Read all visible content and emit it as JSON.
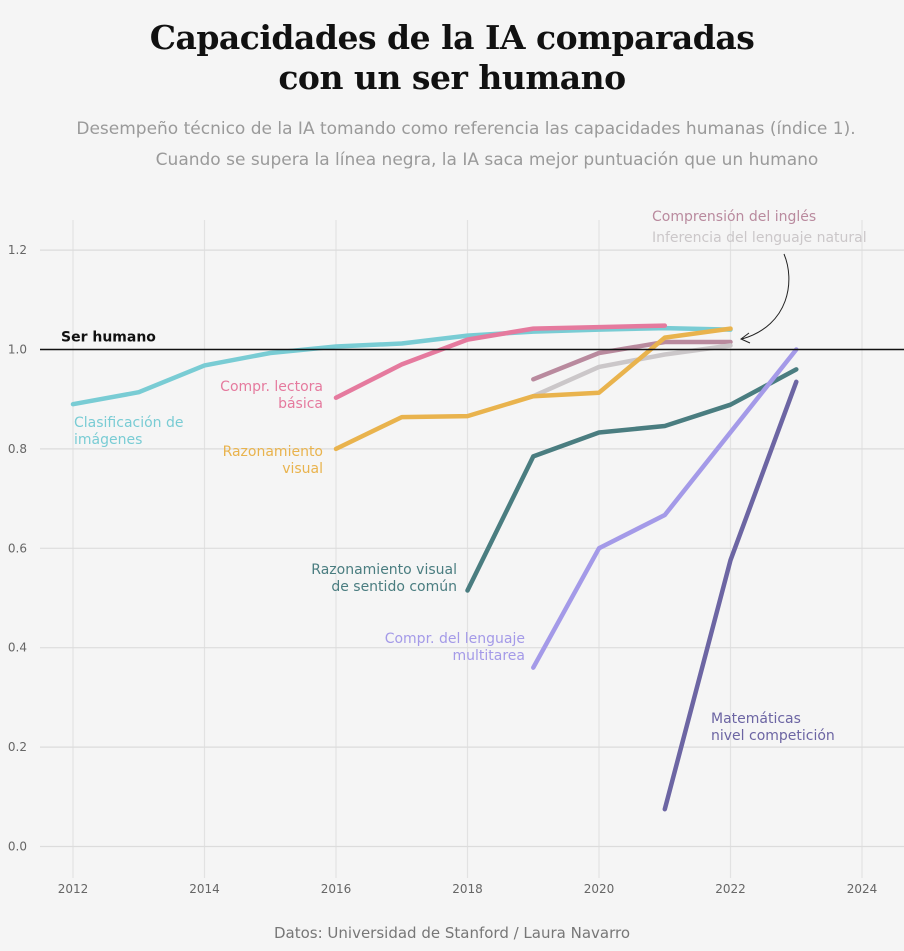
{
  "title_lines": [
    "Capacidades de la IA comparadas",
    "con un ser humano"
  ],
  "subtitle_lines": [
    "Desempeño técnico de la IA tomando como referencia las capacidades humanas (índice 1).",
    "Cuando se supera la línea negra, la IA saca mejor puntuación que un humano"
  ],
  "source": "Datos: Universidad de Stanford / Laura Navarro",
  "chart_data": {
    "type": "line",
    "title": "Capacidades de la IA comparadas con un ser humano",
    "xlim": [
      2011.5,
      2024.5
    ],
    "ylim": [
      -0.05,
      1.27
    ],
    "x_ticks": [
      2012,
      2014,
      2016,
      2018,
      2020,
      2022,
      2024
    ],
    "y_ticks": [
      0.0,
      0.2,
      0.4,
      0.6,
      0.8,
      1.0,
      1.2
    ],
    "y_tick_labels": [
      "0.0",
      "0.2",
      "0.4",
      "0.6",
      "0.8",
      "1.0",
      "1.2"
    ],
    "grid": true,
    "reference_line": {
      "y": 1.0,
      "label": "Ser humano",
      "color": "#111111"
    },
    "series": [
      {
        "name": "Clasificación de imágenes",
        "label_lines": [
          "Clasificación de",
          "imágenes"
        ],
        "color": "#79ccd4",
        "x": [
          2012,
          2013,
          2014,
          2015,
          2016,
          2017,
          2018,
          2019,
          2020,
          2021,
          2022
        ],
        "y": [
          0.89,
          0.914,
          0.968,
          0.993,
          1.006,
          1.012,
          1.028,
          1.036,
          1.04,
          1.043,
          1.04
        ]
      },
      {
        "name": "Compr. lectora básica",
        "label_lines": [
          "Compr. lectora",
          "básica"
        ],
        "color": "#e57a9e",
        "x": [
          2016,
          2017,
          2018,
          2019,
          2020,
          2021
        ],
        "y": [
          0.903,
          0.97,
          1.02,
          1.042,
          1.045,
          1.048
        ]
      },
      {
        "name": "Comprensión del inglés",
        "label_lines": [
          "Comprensión del inglés"
        ],
        "color": "#b98a9e",
        "x": [
          2019,
          2020,
          2021,
          2022
        ],
        "y": [
          0.94,
          0.993,
          1.015,
          1.015
        ]
      },
      {
        "name": "Inferencia del lenguaje natural",
        "label_lines": [
          "Inferencia del lenguaje natural"
        ],
        "color": "#cbc7c9",
        "x": [
          2019,
          2020,
          2021,
          2022
        ],
        "y": [
          0.906,
          0.965,
          0.99,
          1.008
        ]
      },
      {
        "name": "Razonamiento visual",
        "label_lines": [
          "Razonamiento",
          "visual"
        ],
        "color": "#e9b34d",
        "x": [
          2016,
          2017,
          2018,
          2019,
          2020,
          2021,
          2022
        ],
        "y": [
          0.8,
          0.864,
          0.866,
          0.906,
          0.913,
          1.024,
          1.042
        ]
      },
      {
        "name": "Razonamiento visual de sentido común",
        "label_lines": [
          "Razonamiento visual",
          "de sentido común"
        ],
        "color": "#4a7d80",
        "x": [
          2018,
          2019,
          2020,
          2021,
          2022,
          2023
        ],
        "y": [
          0.515,
          0.785,
          0.833,
          0.846,
          0.889,
          0.96
        ]
      },
      {
        "name": "Compr. del lenguaje multitarea",
        "label_lines": [
          "Compr. del lenguaje",
          "multitarea"
        ],
        "color": "#a49ae8",
        "x": [
          2019,
          2020,
          2021,
          2023
        ],
        "y": [
          0.36,
          0.6,
          0.667,
          1.0
        ]
      },
      {
        "name": "Matemáticas nivel competición",
        "label_lines": [
          "Matemáticas",
          "nivel competición"
        ],
        "color": "#6c65a3",
        "x": [
          2021,
          2022,
          2023
        ],
        "y": [
          0.075,
          0.576,
          0.935
        ]
      }
    ]
  }
}
